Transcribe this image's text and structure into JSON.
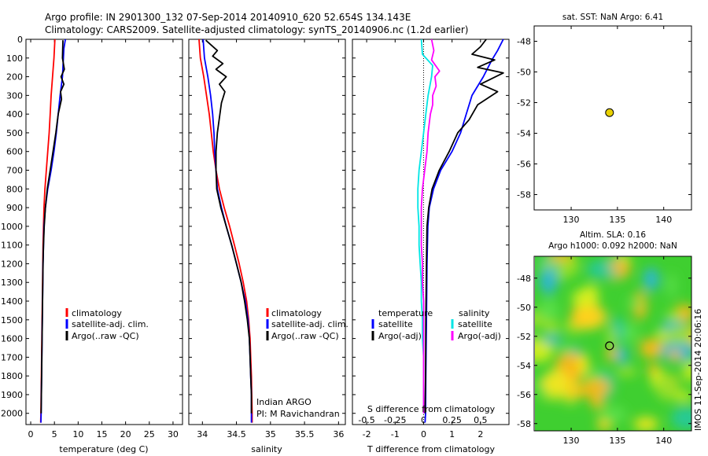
{
  "header": {
    "line1": "Argo profile: IN 2901300_132 07-Sep-2014 20140910_620 52.654S 134.143E",
    "line2": "Climatology: CARS2009. Satellite-adjusted climatology: synTS_20140906.nc (1.2d earlier)"
  },
  "colors": {
    "climatology": "#ff0000",
    "satellite": "#0000ff",
    "argo": "#000000",
    "s_satellite": "#00e5e5",
    "s_argo": "#ff00ff",
    "marker": "#e8d000"
  },
  "side_label": "IMOS 11-Sep-2014 20:06:16",
  "chart_data": [
    {
      "type": "line",
      "name": "temperature-profile",
      "xlabel": "temperature (deg C)",
      "ylabel": "",
      "xlim": [
        -1,
        32
      ],
      "ylim": [
        2060,
        0
      ],
      "xticks": [
        0,
        5,
        10,
        15,
        20,
        25,
        30
      ],
      "yticks": [
        0,
        100,
        200,
        300,
        400,
        500,
        600,
        700,
        800,
        900,
        1000,
        1100,
        1200,
        1300,
        1400,
        1500,
        1600,
        1700,
        1800,
        1900,
        2000
      ],
      "legend": {
        "position": "lower-right",
        "entries": [
          "climatology",
          "satellite-adj. clim.",
          "Argo(..raw -QC)"
        ]
      },
      "series": [
        {
          "name": "climatology",
          "color": "#ff0000",
          "points": [
            [
              5.1,
              0
            ],
            [
              4.9,
              100
            ],
            [
              4.6,
              200
            ],
            [
              4.3,
              300
            ],
            [
              4.1,
              400
            ],
            [
              3.9,
              500
            ],
            [
              3.6,
              600
            ],
            [
              3.3,
              700
            ],
            [
              3.0,
              800
            ],
            [
              2.8,
              900
            ],
            [
              2.7,
              1000
            ],
            [
              2.6,
              1100
            ],
            [
              2.55,
              1200
            ],
            [
              2.5,
              1300
            ],
            [
              2.45,
              1400
            ],
            [
              2.4,
              1500
            ],
            [
              2.35,
              1600
            ],
            [
              2.3,
              1700
            ],
            [
              2.25,
              1800
            ],
            [
              2.2,
              1900
            ],
            [
              2.15,
              2000
            ],
            [
              2.1,
              2050
            ]
          ]
        },
        {
          "name": "satellite-adj. clim.",
          "color": "#0000ff",
          "points": [
            [
              7.3,
              0
            ],
            [
              7.0,
              50
            ],
            [
              6.9,
              100
            ],
            [
              6.7,
              200
            ],
            [
              6.2,
              300
            ],
            [
              5.8,
              400
            ],
            [
              5.4,
              500
            ],
            [
              4.9,
              600
            ],
            [
              4.3,
              700
            ],
            [
              3.6,
              800
            ],
            [
              3.1,
              900
            ],
            [
              2.8,
              1000
            ],
            [
              2.7,
              1100
            ],
            [
              2.6,
              1200
            ],
            [
              2.55,
              1300
            ],
            [
              2.5,
              1400
            ],
            [
              2.45,
              1500
            ],
            [
              2.4,
              1600
            ],
            [
              2.35,
              1700
            ],
            [
              2.3,
              1800
            ],
            [
              2.25,
              1900
            ],
            [
              2.2,
              2000
            ],
            [
              2.15,
              2050
            ]
          ]
        },
        {
          "name": "Argo(..raw -QC)",
          "color": "#000000",
          "points": [
            [
              6.8,
              5
            ],
            [
              6.7,
              100
            ],
            [
              7.1,
              160
            ],
            [
              6.4,
              200
            ],
            [
              7.0,
              240
            ],
            [
              6.3,
              280
            ],
            [
              6.5,
              320
            ],
            [
              5.8,
              400
            ],
            [
              5.3,
              500
            ],
            [
              4.7,
              600
            ],
            [
              4.1,
              700
            ],
            [
              3.5,
              800
            ],
            [
              3.1,
              900
            ],
            [
              2.85,
              1000
            ],
            [
              2.7,
              1100
            ],
            [
              2.6,
              1200
            ],
            [
              2.55,
              1300
            ],
            [
              2.5,
              1400
            ],
            [
              2.45,
              1500
            ],
            [
              2.4,
              1600
            ],
            [
              2.35,
              1700
            ],
            [
              2.3,
              1800
            ],
            [
              2.25,
              1900
            ],
            [
              2.2,
              2000
            ]
          ]
        }
      ]
    },
    {
      "type": "line",
      "name": "salinity-profile",
      "xlabel": "salinity",
      "ylabel": "",
      "xlim": [
        33.8,
        36.1
      ],
      "ylim": [
        2060,
        0
      ],
      "xticks": [
        34,
        34.5,
        35,
        35.5,
        36
      ],
      "legend": {
        "position": "lower-right",
        "entries": [
          "climatology",
          "satellite-adj. clim.",
          "Argo(..raw -QC)"
        ]
      },
      "annotation": [
        "Indian ARGO",
        "PI: M Ravichandran"
      ],
      "series": [
        {
          "name": "climatology",
          "color": "#ff0000",
          "points": [
            [
              33.95,
              0
            ],
            [
              33.97,
              100
            ],
            [
              34.02,
              200
            ],
            [
              34.06,
              300
            ],
            [
              34.1,
              400
            ],
            [
              34.13,
              500
            ],
            [
              34.16,
              600
            ],
            [
              34.2,
              700
            ],
            [
              34.25,
              800
            ],
            [
              34.32,
              900
            ],
            [
              34.4,
              1000
            ],
            [
              34.47,
              1100
            ],
            [
              34.54,
              1200
            ],
            [
              34.6,
              1300
            ],
            [
              34.65,
              1400
            ],
            [
              34.68,
              1500
            ],
            [
              34.7,
              1600
            ],
            [
              34.71,
              1700
            ],
            [
              34.72,
              1800
            ],
            [
              34.725,
              1900
            ],
            [
              34.73,
              2000
            ],
            [
              34.73,
              2050
            ]
          ]
        },
        {
          "name": "satellite-adj. clim.",
          "color": "#0000ff",
          "points": [
            [
              34.01,
              0
            ],
            [
              34.03,
              100
            ],
            [
              34.08,
              200
            ],
            [
              34.12,
              300
            ],
            [
              34.15,
              400
            ],
            [
              34.17,
              500
            ],
            [
              34.18,
              600
            ],
            [
              34.2,
              700
            ],
            [
              34.22,
              800
            ],
            [
              34.28,
              900
            ],
            [
              34.35,
              1000
            ],
            [
              34.43,
              1100
            ],
            [
              34.5,
              1200
            ],
            [
              34.57,
              1300
            ],
            [
              34.63,
              1400
            ],
            [
              34.67,
              1500
            ],
            [
              34.69,
              1600
            ],
            [
              34.7,
              1700
            ],
            [
              34.71,
              1800
            ],
            [
              34.72,
              1900
            ],
            [
              34.72,
              2000
            ],
            [
              34.72,
              2050
            ]
          ]
        },
        {
          "name": "Argo(..raw -QC)",
          "color": "#000000",
          "points": [
            [
              34.05,
              5
            ],
            [
              34.22,
              60
            ],
            [
              34.15,
              90
            ],
            [
              34.3,
              130
            ],
            [
              34.2,
              160
            ],
            [
              34.35,
              200
            ],
            [
              34.25,
              240
            ],
            [
              34.33,
              280
            ],
            [
              34.28,
              340
            ],
            [
              34.25,
              420
            ],
            [
              34.22,
              500
            ],
            [
              34.2,
              600
            ],
            [
              34.2,
              700
            ],
            [
              34.21,
              800
            ],
            [
              34.27,
              900
            ],
            [
              34.35,
              1000
            ],
            [
              34.43,
              1100
            ],
            [
              34.5,
              1200
            ],
            [
              34.57,
              1300
            ],
            [
              34.62,
              1400
            ],
            [
              34.66,
              1500
            ],
            [
              34.69,
              1600
            ],
            [
              34.7,
              1700
            ],
            [
              34.71,
              1800
            ],
            [
              34.72,
              1900
            ],
            [
              34.72,
              2000
            ]
          ]
        }
      ]
    },
    {
      "type": "line",
      "name": "difference-profile",
      "xlabel": "T difference from climatology",
      "x2label": "S difference from climatology",
      "ylabel": "",
      "xlim": [
        -2.5,
        3.0
      ],
      "ylim": [
        2060,
        0
      ],
      "xticks": [
        -2,
        -1,
        0,
        1,
        2
      ],
      "x2lim": [
        -0.625,
        0.75
      ],
      "x2ticks": [
        -0.5,
        -0.25,
        0,
        0.25,
        0.5
      ],
      "legend": {
        "position": "lower-center",
        "temperature_title": "temperature",
        "salinity_title": "salinity",
        "entries": [
          "satellite",
          "Argo(-adj)",
          "satellite",
          "Argo(-adj)"
        ]
      },
      "series": [
        {
          "name": "T satellite",
          "color": "#0000ff",
          "points": [
            [
              2.8,
              0
            ],
            [
              2.6,
              60
            ],
            [
              2.4,
              110
            ],
            [
              2.1,
              200
            ],
            [
              1.9,
              250
            ],
            [
              1.7,
              300
            ],
            [
              1.5,
              400
            ],
            [
              1.3,
              500
            ],
            [
              1.0,
              600
            ],
            [
              0.6,
              700
            ],
            [
              0.35,
              800
            ],
            [
              0.2,
              900
            ],
            [
              0.15,
              1000
            ],
            [
              0.12,
              1200
            ],
            [
              0.1,
              1500
            ],
            [
              0.08,
              1800
            ],
            [
              0.07,
              2000
            ],
            [
              0.05,
              2050
            ]
          ]
        },
        {
          "name": "T Argo(-adj)",
          "color": "#000000",
          "points": [
            [
              2.2,
              0
            ],
            [
              2.0,
              40
            ],
            [
              1.7,
              80
            ],
            [
              2.5,
              110
            ],
            [
              1.9,
              150
            ],
            [
              2.8,
              180
            ],
            [
              2.0,
              240
            ],
            [
              2.6,
              280
            ],
            [
              1.9,
              350
            ],
            [
              1.6,
              430
            ],
            [
              1.2,
              500
            ],
            [
              0.9,
              600
            ],
            [
              0.55,
              700
            ],
            [
              0.3,
              800
            ],
            [
              0.18,
              900
            ],
            [
              0.12,
              1000
            ],
            [
              0.1,
              1200
            ],
            [
              0.08,
              1500
            ],
            [
              0.07,
              1800
            ],
            [
              0.05,
              2000
            ]
          ]
        },
        {
          "name": "S satellite",
          "color": "#00e5e5",
          "points": [
            [
              -0.02,
              0
            ],
            [
              -0.01,
              80
            ],
            [
              0.08,
              140
            ],
            [
              0.07,
              200
            ],
            [
              0.04,
              300
            ],
            [
              0.02,
              400
            ],
            [
              0.0,
              500
            ],
            [
              -0.02,
              600
            ],
            [
              -0.04,
              700
            ],
            [
              -0.05,
              800
            ],
            [
              -0.05,
              900
            ],
            [
              -0.04,
              1000
            ],
            [
              -0.04,
              1100
            ],
            [
              -0.03,
              1200
            ],
            [
              -0.02,
              1300
            ],
            [
              -0.02,
              1400
            ],
            [
              -0.01,
              1500
            ],
            [
              -0.01,
              1600
            ],
            [
              0.0,
              1700
            ],
            [
              0.0,
              1800
            ],
            [
              0.0,
              1900
            ],
            [
              0.0,
              2000
            ]
          ]
        },
        {
          "name": "S Argo(-adj)",
          "color": "#ff00ff",
          "points": [
            [
              0.07,
              0
            ],
            [
              0.09,
              60
            ],
            [
              0.07,
              110
            ],
            [
              0.14,
              170
            ],
            [
              0.1,
              200
            ],
            [
              0.11,
              250
            ],
            [
              0.08,
              300
            ],
            [
              0.08,
              350
            ],
            [
              0.06,
              400
            ],
            [
              0.04,
              500
            ],
            [
              0.03,
              600
            ],
            [
              0.01,
              700
            ],
            [
              -0.01,
              800
            ],
            [
              -0.02,
              900
            ],
            [
              -0.02,
              1000
            ],
            [
              -0.02,
              1100
            ],
            [
              -0.01,
              1200
            ],
            [
              -0.01,
              1300
            ],
            [
              0.0,
              1400
            ],
            [
              0.0,
              1500
            ],
            [
              0.0,
              1600
            ],
            [
              0.0,
              1700
            ],
            [
              0.0,
              1800
            ],
            [
              0.0,
              1900
            ],
            [
              0.0,
              2000
            ]
          ]
        }
      ]
    },
    {
      "type": "scatter",
      "name": "location-map",
      "title": "sat. SST: NaN Argo: 6.41",
      "xlim": [
        126,
        143
      ],
      "ylim": [
        -59,
        -47
      ],
      "xticks": [
        130,
        135,
        140
      ],
      "yticks": [
        -48,
        -50,
        -52,
        -54,
        -56,
        -58
      ],
      "points": [
        [
          134.143,
          -52.654
        ]
      ]
    },
    {
      "type": "heatmap",
      "name": "sla-map",
      "title": "Altim. SLA: 0.16",
      "subtitle": "Argo h1000: 0.092 h2000: NaN",
      "xlim": [
        126,
        143
      ],
      "ylim": [
        -58.5,
        -46.5
      ],
      "xticks": [
        130,
        135,
        140
      ],
      "yticks": [
        -48,
        -50,
        -52,
        -54,
        -56,
        -58
      ],
      "points": [
        [
          134.143,
          -52.654
        ]
      ]
    }
  ]
}
